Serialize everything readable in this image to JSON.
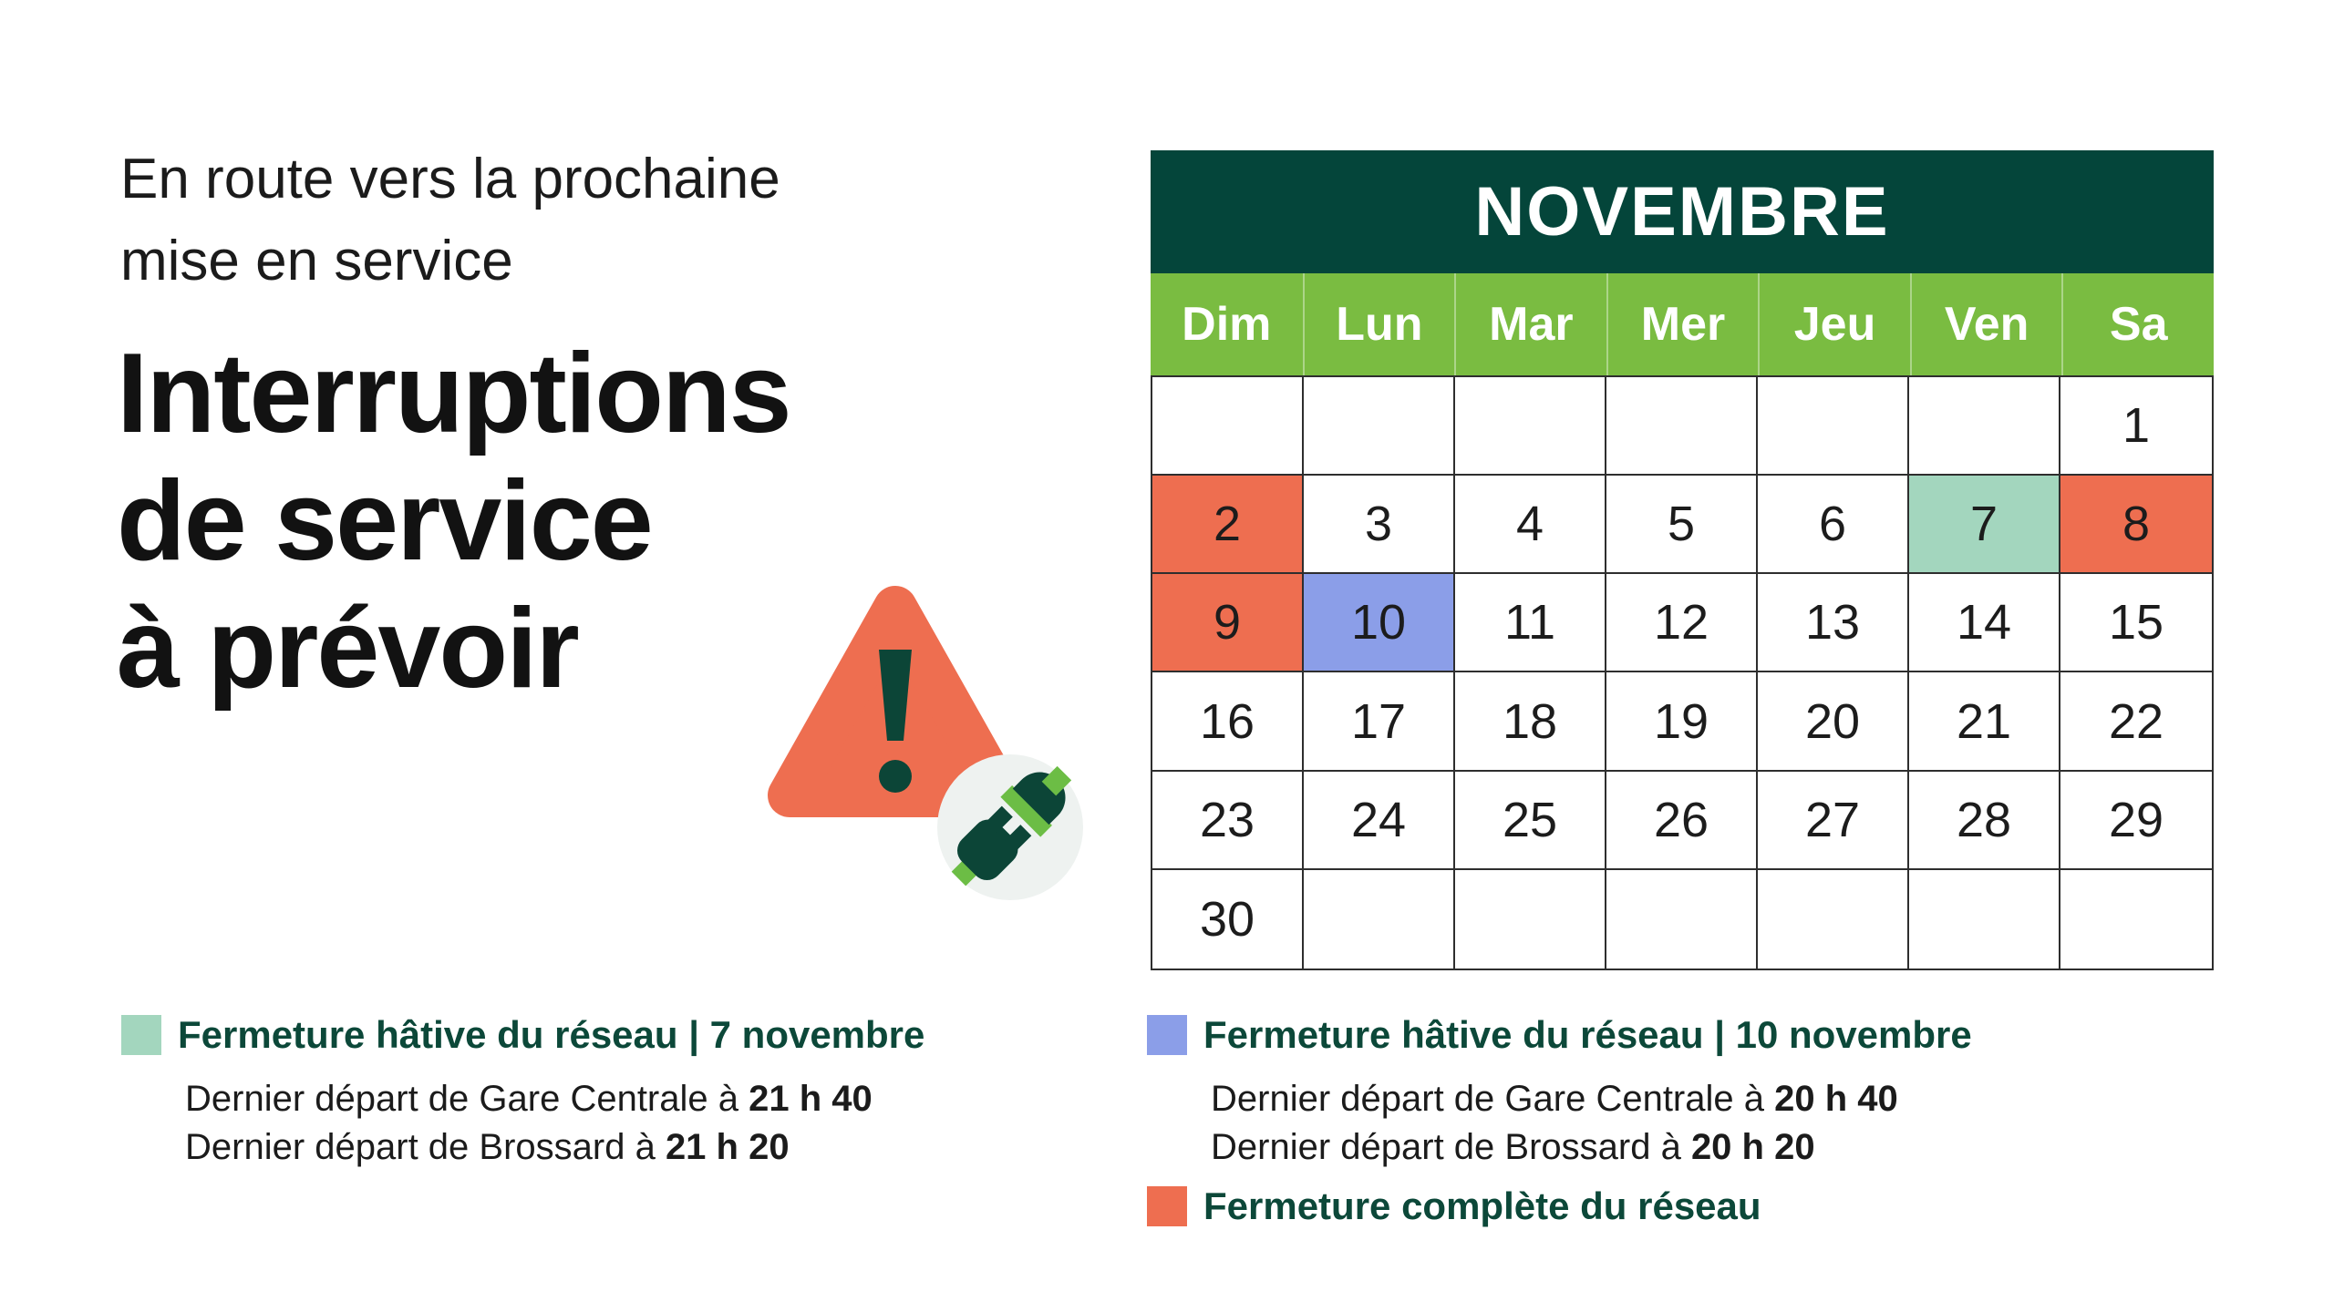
{
  "intro": {
    "line1": "En route vers la prochaine",
    "line2": "mise en service"
  },
  "title": {
    "line1": "Interruptions",
    "line2": "de service",
    "line3": "à prévoir"
  },
  "icons": {
    "warning_triangle": "warning-exclamation-triangle",
    "badge": "disconnected-plug-badge"
  },
  "colors": {
    "orange": "#EE6E50",
    "mint": "#A3D6BE",
    "blue": "#8B9EE8",
    "calendar_header_green": "#04453A",
    "calendar_days_green": "#7ABC41",
    "legend_text_green": "#0C4839",
    "plug_dark_green": "#0C4537",
    "cable_light_green": "#6CBD45",
    "badge_background": "#EEF2F0",
    "grid_line": "#2e2e2e",
    "text": "#1b1b1b"
  },
  "calendar": {
    "month": "NOVEMBRE",
    "day_headers": [
      "Dim",
      "Lun",
      "Mar",
      "Mer",
      "Jeu",
      "Ven",
      "Sa"
    ],
    "weeks": [
      [
        "",
        "",
        "",
        "",
        "",
        "",
        "1"
      ],
      [
        "2",
        "3",
        "4",
        "5",
        "6",
        "7",
        "8"
      ],
      [
        "9",
        "10",
        "11",
        "12",
        "13",
        "14",
        "15"
      ],
      [
        "16",
        "17",
        "18",
        "19",
        "20",
        "21",
        "22"
      ],
      [
        "23",
        "24",
        "25",
        "26",
        "27",
        "28",
        "29"
      ],
      [
        "30",
        "",
        "",
        "",
        "",
        "",
        ""
      ]
    ],
    "highlights": {
      "2": "orange",
      "7": "mint",
      "8": "orange",
      "9": "orange",
      "10": "blue"
    }
  },
  "legends": {
    "mint": {
      "title": "Fermeture hâtive du réseau | 7 novembre",
      "lines": [
        {
          "prefix": "Dernier départ de Gare Centrale à ",
          "time": "21 h 40"
        },
        {
          "prefix": "Dernier départ de Brossard à ",
          "time": "21 h 20"
        }
      ]
    },
    "blue": {
      "title": "Fermeture hâtive du réseau | 10 novembre",
      "lines": [
        {
          "prefix": "Dernier départ de Gare Centrale à ",
          "time": "20 h 40"
        },
        {
          "prefix": "Dernier départ de Brossard à ",
          "time": "20 h 20"
        }
      ]
    },
    "orange": {
      "title": "Fermeture complète du réseau"
    }
  }
}
